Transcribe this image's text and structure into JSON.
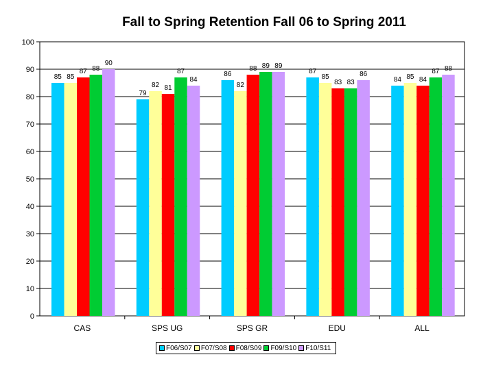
{
  "chart_data": {
    "type": "bar",
    "title": "Fall to Spring Retention Fall 06 to Spring 2011",
    "categories": [
      "CAS",
      "SPS UG",
      "SPS GR",
      "EDU",
      "ALL"
    ],
    "series": [
      {
        "name": "F06/S07",
        "color": "#00ccff",
        "values": [
          85,
          79,
          86,
          87,
          84
        ]
      },
      {
        "name": "F07/S08",
        "color": "#ffff99",
        "values": [
          85,
          82,
          82,
          85,
          85
        ]
      },
      {
        "name": "F08/S09",
        "color": "#ff0000",
        "values": [
          87,
          81,
          88,
          83,
          84
        ]
      },
      {
        "name": "F09/S10",
        "color": "#00cc33",
        "values": [
          88,
          87,
          89,
          83,
          87
        ]
      },
      {
        "name": "F10/S11",
        "color": "#cc99ff",
        "values": [
          90,
          84,
          89,
          86,
          88
        ]
      }
    ],
    "ylim": [
      0,
      100
    ],
    "yticks": [
      0,
      10,
      20,
      30,
      40,
      50,
      60,
      70,
      80,
      90,
      100
    ],
    "grid": true,
    "legend_position": "bottom"
  }
}
